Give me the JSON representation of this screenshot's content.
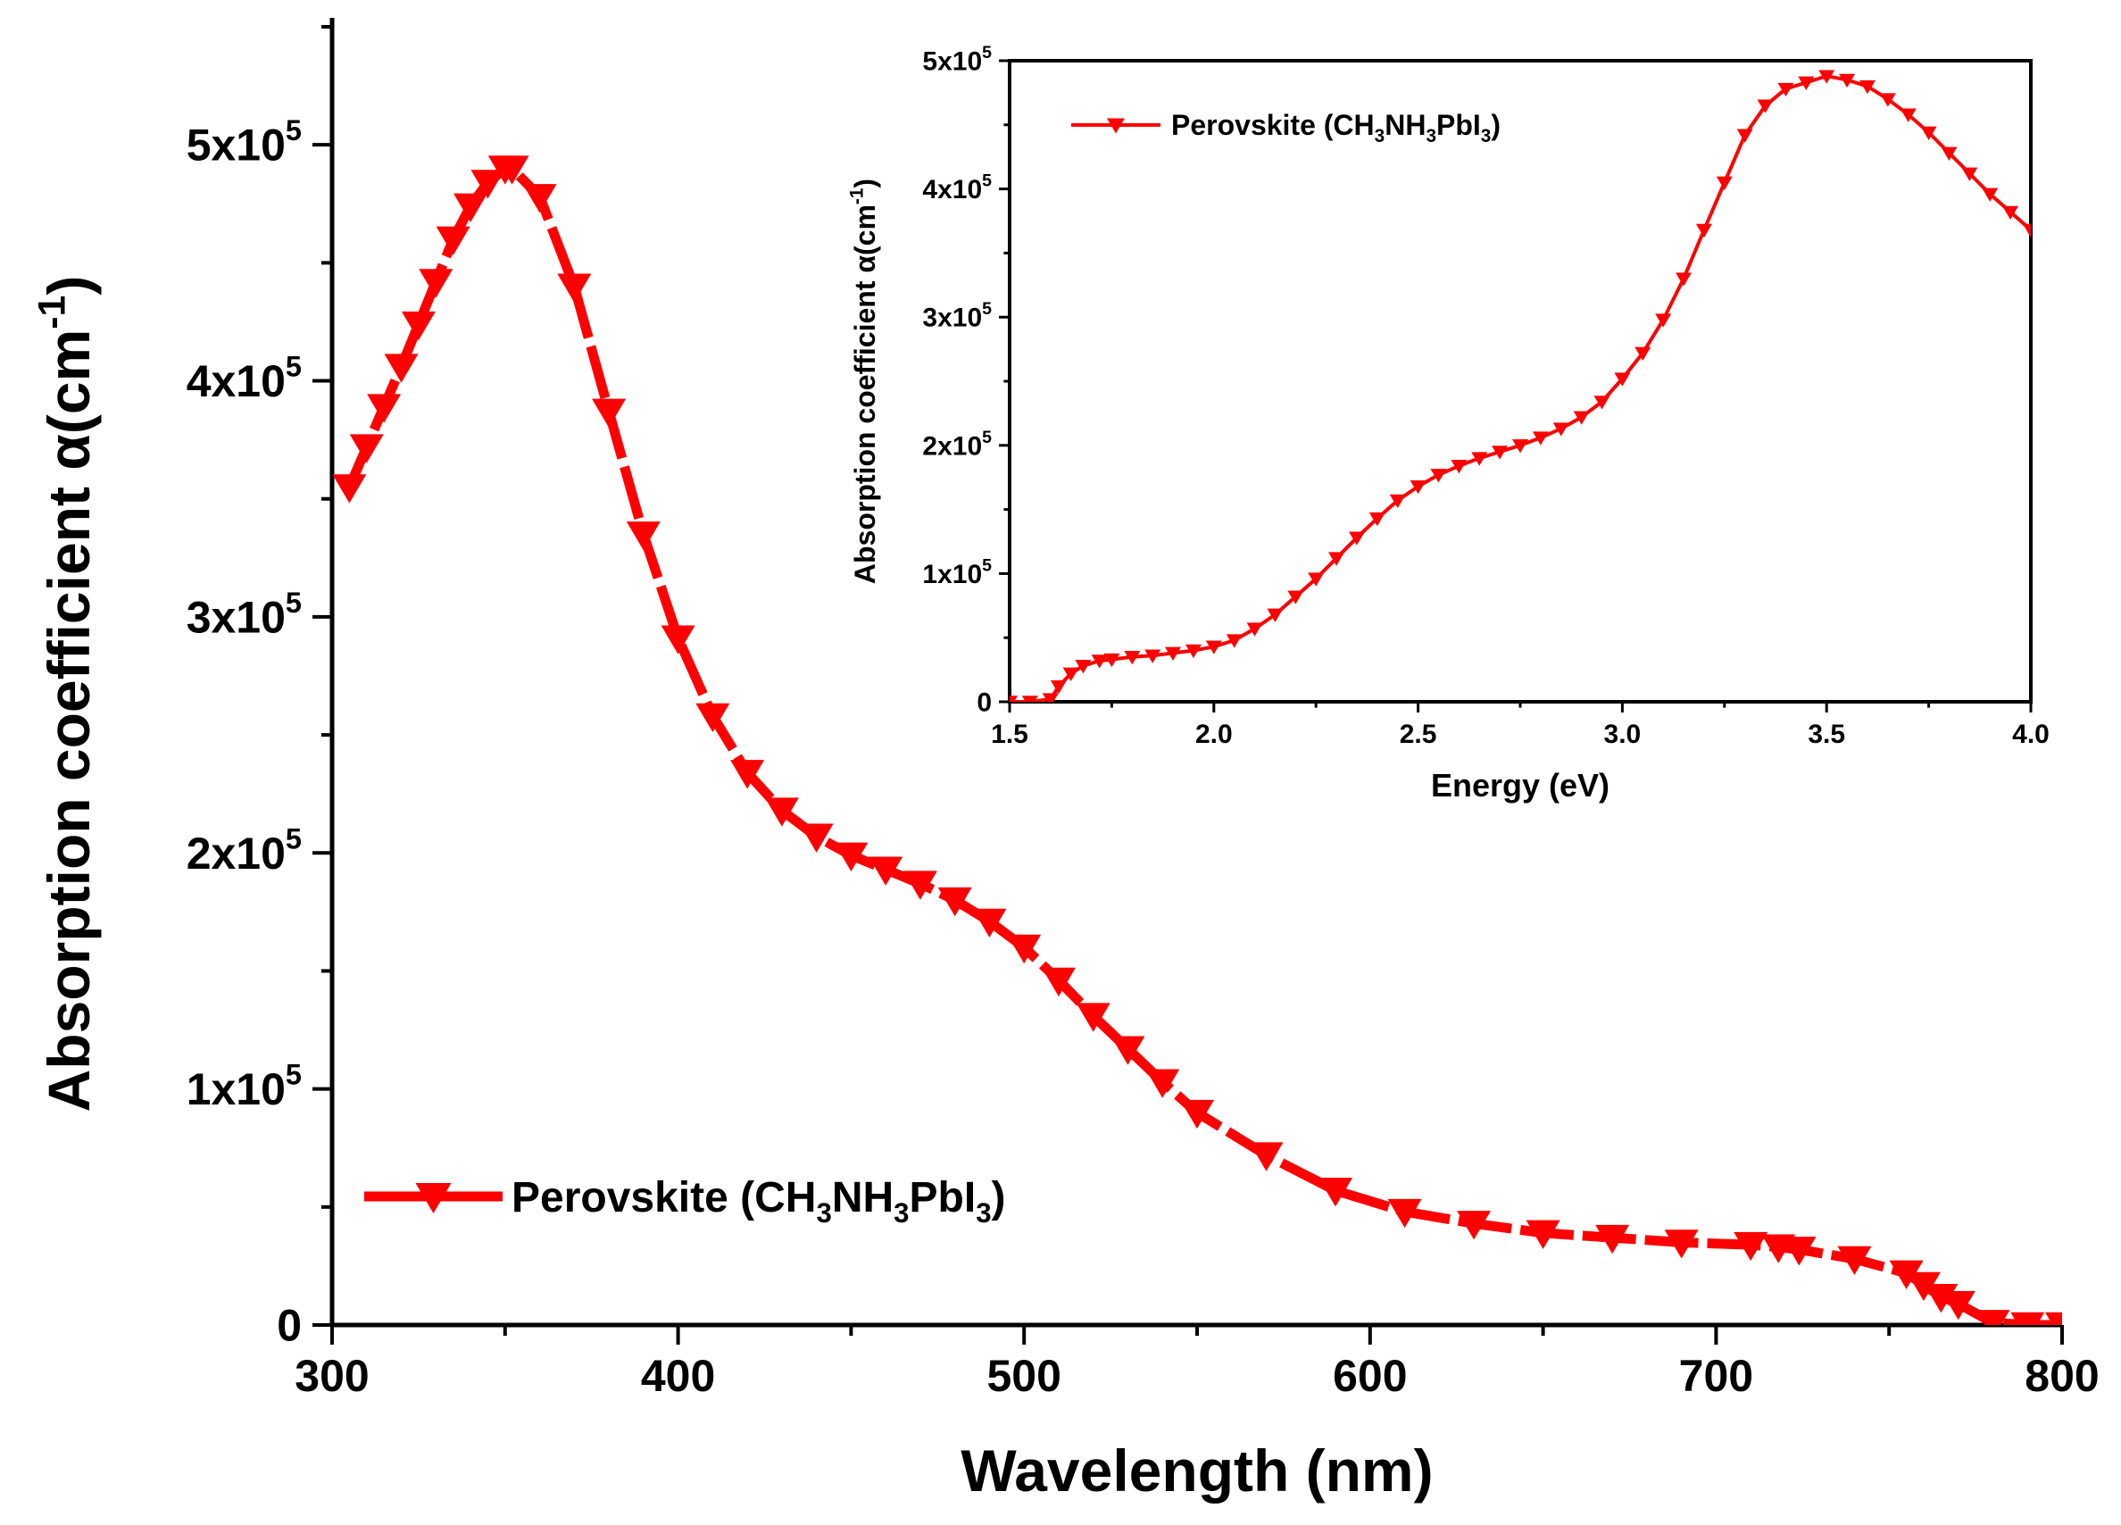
{
  "colors": {
    "series": "#ff0000",
    "axis": "#000000",
    "background": "#ffffff"
  },
  "chart_data": [
    {
      "type": "line",
      "role": "main",
      "title": "",
      "xlabel": "Wavelength (nm)",
      "ylabel_main": "Absorption coefficient α(cm",
      "ylabel_sup": "-1",
      "ylabel_close": ")",
      "xlim": [
        300,
        800
      ],
      "ylim": [
        0,
        550000
      ],
      "xticks": [
        300,
        400,
        500,
        600,
        700,
        800
      ],
      "xtick_labels": [
        "300",
        "400",
        "500",
        "600",
        "700",
        "800"
      ],
      "yticks": [
        0,
        100000,
        200000,
        300000,
        400000,
        500000
      ],
      "ytick_labels": [
        {
          "base": "0",
          "exp": ""
        },
        {
          "base": "1x10",
          "exp": "5"
        },
        {
          "base": "2x10",
          "exp": "5"
        },
        {
          "base": "3x10",
          "exp": "5"
        },
        {
          "base": "4x10",
          "exp": "5"
        },
        {
          "base": "5x10",
          "exp": "5"
        }
      ],
      "legend": {
        "position": "lower-left",
        "label_parts": [
          "Perovskite (CH",
          "3",
          "NH",
          "3",
          "PbI",
          "3",
          ")"
        ]
      },
      "series": [
        {
          "name": "Perovskite (CH3NH3PbI3)",
          "x": [
            305,
            310,
            315,
            320,
            325,
            330,
            335,
            340,
            345,
            350,
            352,
            360,
            370,
            380,
            390,
            400,
            410,
            420,
            430,
            440,
            450,
            460,
            470,
            480,
            490,
            500,
            510,
            520,
            530,
            540,
            550,
            570,
            590,
            610,
            630,
            650,
            670,
            690,
            710,
            718,
            724,
            740,
            755,
            760,
            765,
            770,
            780,
            790,
            800
          ],
          "y": [
            355000,
            372000,
            389000,
            406000,
            424000,
            442000,
            460000,
            474000,
            484000,
            490000,
            490000,
            478000,
            440000,
            387000,
            335000,
            291000,
            258000,
            234000,
            218000,
            207000,
            199000,
            193000,
            187000,
            180000,
            171000,
            160000,
            146000,
            131000,
            117000,
            103000,
            90000,
            72000,
            57000,
            48000,
            43000,
            39000,
            37000,
            35000,
            34000,
            33000,
            32000,
            28000,
            22000,
            17000,
            12000,
            9000,
            1000,
            0,
            0
          ]
        }
      ]
    },
    {
      "type": "line",
      "role": "inset",
      "title": "",
      "xlabel": "Energy (eV)",
      "ylabel_main": "Absorption coefficient α(cm",
      "ylabel_sup": "-1",
      "ylabel_close": ")",
      "xlim": [
        1.5,
        4.0
      ],
      "ylim": [
        0,
        500000
      ],
      "xticks": [
        1.5,
        2.0,
        2.5,
        3.0,
        3.5,
        4.0
      ],
      "xtick_labels": [
        "1.5",
        "2.0",
        "2.5",
        "3.0",
        "3.5",
        "4.0"
      ],
      "yticks": [
        0,
        100000,
        200000,
        300000,
        400000,
        500000
      ],
      "ytick_labels": [
        {
          "base": "0",
          "exp": ""
        },
        {
          "base": "1x10",
          "exp": "5"
        },
        {
          "base": "2x10",
          "exp": "5"
        },
        {
          "base": "3x10",
          "exp": "5"
        },
        {
          "base": "4x10",
          "exp": "5"
        },
        {
          "base": "5x10",
          "exp": "5"
        }
      ],
      "legend": {
        "position": "top-left",
        "label_parts": [
          "Perovskite (CH",
          "3",
          "NH",
          "3",
          "PbI",
          "3",
          ")"
        ]
      },
      "series": [
        {
          "name": "Perovskite (CH3NH3PbI3)",
          "x": [
            1.5,
            1.55,
            1.6,
            1.62,
            1.65,
            1.68,
            1.72,
            1.75,
            1.8,
            1.85,
            1.9,
            1.95,
            2.0,
            2.05,
            2.1,
            2.15,
            2.2,
            2.25,
            2.3,
            2.35,
            2.4,
            2.45,
            2.5,
            2.55,
            2.6,
            2.65,
            2.7,
            2.75,
            2.8,
            2.85,
            2.9,
            2.95,
            3.0,
            3.05,
            3.1,
            3.15,
            3.2,
            3.25,
            3.3,
            3.35,
            3.4,
            3.45,
            3.5,
            3.55,
            3.6,
            3.65,
            3.7,
            3.75,
            3.8,
            3.85,
            3.9,
            3.95,
            4.0
          ],
          "y": [
            0,
            0,
            2000,
            12000,
            22000,
            28000,
            32000,
            33000,
            35000,
            36000,
            38000,
            40000,
            43000,
            48000,
            57000,
            68000,
            82000,
            96000,
            112000,
            128000,
            143000,
            157000,
            168000,
            177000,
            184000,
            190000,
            195000,
            200000,
            206000,
            213000,
            222000,
            234000,
            252000,
            272000,
            298000,
            330000,
            368000,
            405000,
            442000,
            465000,
            478000,
            483000,
            488000,
            485000,
            480000,
            470000,
            458000,
            444000,
            428000,
            412000,
            396000,
            382000,
            368000
          ]
        }
      ]
    }
  ]
}
